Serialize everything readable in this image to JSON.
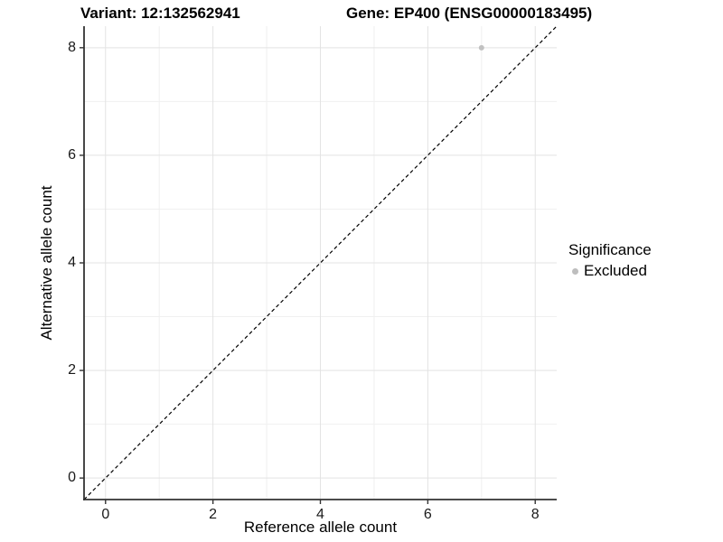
{
  "chart_data": {
    "type": "scatter",
    "titles": {
      "left": "Variant: 12:132562941",
      "right": "Gene: EP400 (ENSG00000183495)"
    },
    "xlabel": "Reference allele count",
    "ylabel": "Alternative allele count",
    "xlim": [
      -0.4,
      8.4
    ],
    "ylim": [
      -0.4,
      8.4
    ],
    "xticks": [
      0,
      2,
      4,
      6,
      8
    ],
    "yticks": [
      0,
      2,
      4,
      6,
      8
    ],
    "minor_x": [
      1,
      3,
      5,
      7
    ],
    "minor_y": [
      1,
      3,
      5,
      7
    ],
    "grid": true,
    "points": [
      {
        "x": 7,
        "y": 8,
        "significance": "Excluded"
      }
    ],
    "reference_line": {
      "type": "identity",
      "style": "dashed",
      "from": [
        -0.4,
        -0.4
      ],
      "to": [
        8.4,
        8.4
      ]
    },
    "legend": {
      "title": "Significance",
      "position": "right",
      "entries": [
        {
          "label": "Excluded",
          "marker": "circle",
          "color": "#bebebe"
        }
      ]
    },
    "colors": {
      "point": "#c1c1c1",
      "grid_major": "#e3e3e3",
      "grid_minor": "#f0f0f0",
      "axis": "#333333",
      "reference_line": "#000000",
      "background": "#ffffff",
      "text": "#000000"
    }
  }
}
